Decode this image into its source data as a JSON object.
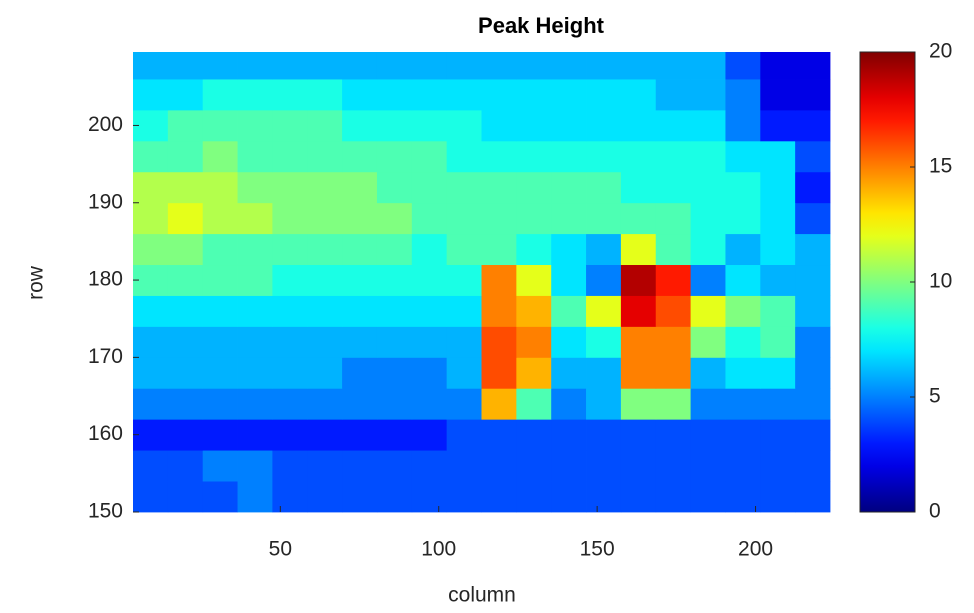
{
  "chart_data": {
    "type": "heatmap",
    "title": "Peak Height",
    "xlabel": "column",
    "ylabel": "row",
    "colormap": "jet",
    "xbins": [
      3.5,
      14.5,
      25.5,
      36.5,
      47.5,
      58.5,
      69.5,
      80.5,
      91.5,
      102.5,
      113.5,
      124.5,
      135.5,
      146.5,
      157.5,
      168.5,
      179.5,
      190.5,
      201.5,
      212.5,
      223.5
    ],
    "ybins": [
      150,
      154,
      158,
      162,
      166,
      170,
      174,
      178,
      182,
      186,
      190,
      194,
      198,
      202,
      206,
      209.5
    ],
    "z": [
      [
        4,
        4,
        4,
        5,
        4,
        4,
        4,
        4,
        4,
        4,
        4,
        4,
        4,
        4,
        4,
        4,
        4,
        4,
        4,
        4
      ],
      [
        4,
        4,
        5,
        5,
        4,
        4,
        4,
        4,
        4,
        4,
        4,
        4,
        4,
        4,
        4,
        4,
        4,
        4,
        4,
        4
      ],
      [
        3,
        3,
        3,
        3,
        3,
        3,
        3,
        3,
        3,
        4,
        4,
        4,
        4,
        4,
        4,
        4,
        4,
        4,
        4,
        4
      ],
      [
        5,
        5,
        5,
        5,
        5,
        5,
        5,
        5,
        5,
        5,
        14,
        9,
        5,
        6,
        10,
        10,
        5,
        5,
        5,
        5
      ],
      [
        6,
        6,
        6,
        6,
        6,
        6,
        5,
        5,
        5,
        6,
        16,
        14,
        6,
        6,
        15,
        15,
        6,
        7,
        7,
        5
      ],
      [
        6,
        6,
        6,
        6,
        6,
        6,
        6,
        6,
        6,
        6,
        16,
        15,
        7,
        8,
        15,
        15,
        10,
        8,
        9,
        5
      ],
      [
        7,
        7,
        7,
        7,
        7,
        7,
        7,
        7,
        7,
        7,
        15,
        14,
        9,
        12,
        18,
        16,
        12,
        10,
        9,
        6
      ],
      [
        9,
        9,
        9,
        9,
        8,
        8,
        8,
        8,
        8,
        8,
        15,
        12,
        7,
        5,
        19,
        17,
        5,
        7,
        6,
        6
      ],
      [
        10,
        10,
        9,
        9,
        9,
        9,
        9,
        9,
        8,
        9,
        9,
        8,
        7,
        6,
        12,
        9,
        8,
        6,
        7,
        6
      ],
      [
        11,
        12,
        11,
        11,
        10,
        10,
        10,
        10,
        9,
        9,
        9,
        9,
        9,
        9,
        9,
        9,
        8,
        8,
        7,
        4
      ],
      [
        11,
        11,
        11,
        10,
        10,
        10,
        10,
        9,
        9,
        9,
        9,
        9,
        9,
        9,
        8,
        8,
        8,
        8,
        7,
        3
      ],
      [
        9,
        9,
        10,
        9,
        9,
        9,
        9,
        9,
        9,
        8,
        8,
        8,
        8,
        8,
        8,
        8,
        8,
        7,
        7,
        4
      ],
      [
        8,
        9,
        9,
        9,
        9,
        9,
        8,
        8,
        8,
        8,
        7,
        7,
        7,
        7,
        7,
        7,
        7,
        5,
        3,
        3
      ],
      [
        7,
        7,
        8,
        8,
        8,
        8,
        7,
        7,
        7,
        7,
        7,
        7,
        7,
        7,
        7,
        6,
        6,
        5,
        2,
        2
      ],
      [
        6,
        6,
        6,
        6,
        6,
        6,
        6,
        6,
        6,
        6,
        6,
        6,
        6,
        6,
        6,
        6,
        6,
        4,
        2,
        2
      ]
    ],
    "xlim": [
      3.5,
      223.5
    ],
    "ylim": [
      150,
      209.5
    ],
    "xticks": [
      50,
      100,
      150,
      200
    ],
    "yticks": [
      150,
      160,
      170,
      180,
      190,
      200
    ],
    "clim": [
      0,
      20
    ],
    "cticks": [
      0,
      5,
      10,
      15,
      20
    ]
  }
}
